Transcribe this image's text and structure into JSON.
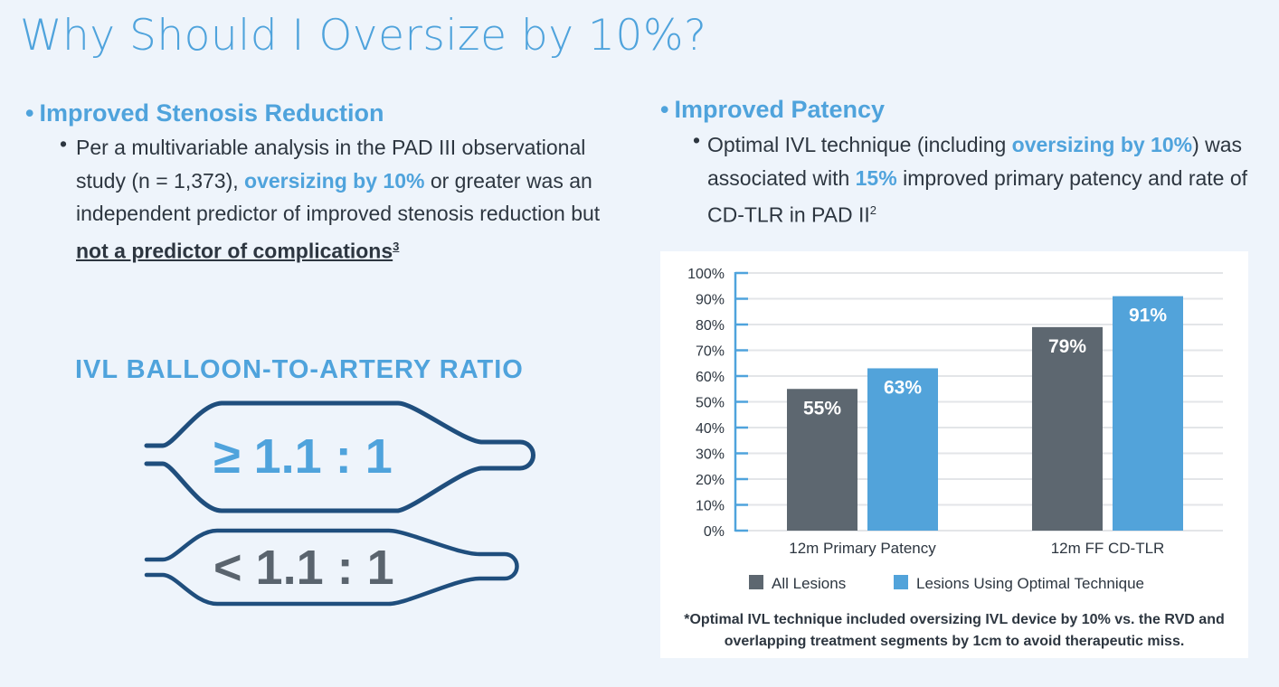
{
  "title": "Why Should I Oversize by 10%?",
  "left": {
    "heading": "Improved Stenosis Reduction",
    "text_1": "Per a multivariable analysis in the PAD III observational study (n  = 1,373), ",
    "text_highlight": "oversizing by 10%",
    "text_2": " or greater was an independent predictor of improved stenosis reduction but ",
    "text_underline": "not a predictor of complications",
    "ref": "3",
    "ratio_title": "IVL BALLOON-TO-ARTERY RATIO",
    "ratio_high": "≥ 1.1 : 1",
    "ratio_low": "< 1.1 : 1"
  },
  "right": {
    "heading": "Improved Patency",
    "text_1": "Optimal IVL technique (including ",
    "text_highlight_1": "oversizing by 10%",
    "text_2": ") was associated with ",
    "text_highlight_2": "15%",
    "text_3": " improved primary patency and rate of CD-TLR in PAD II",
    "ref": "2",
    "footnote": "*Optimal IVL technique included oversizing IVL device by 10% vs. the RVD and overlapping treatment segments by 1cm to avoid therapeutic miss."
  },
  "colors": {
    "accent": "#4fa3dc",
    "dark": "#5d6770",
    "balloon": "#1f4e7d"
  },
  "chart_data": {
    "type": "bar",
    "categories": [
      "12m Primary Patency",
      "12m FF CD-TLR"
    ],
    "series": [
      {
        "name": "All Lesions",
        "values": [
          55,
          79
        ],
        "labels": [
          "55%",
          "79%"
        ],
        "color": "#5d6770"
      },
      {
        "name": "Lesions Using Optimal Technique",
        "values": [
          63,
          91
        ],
        "labels": [
          "63%",
          "91%"
        ],
        "color": "#52a3da"
      }
    ],
    "ylim": [
      0,
      100
    ],
    "yticks": [
      "0%",
      "10%",
      "20%",
      "30%",
      "40%",
      "50%",
      "60%",
      "70%",
      "80%",
      "90%",
      "100%"
    ],
    "grid": true,
    "legend": "bottom"
  }
}
